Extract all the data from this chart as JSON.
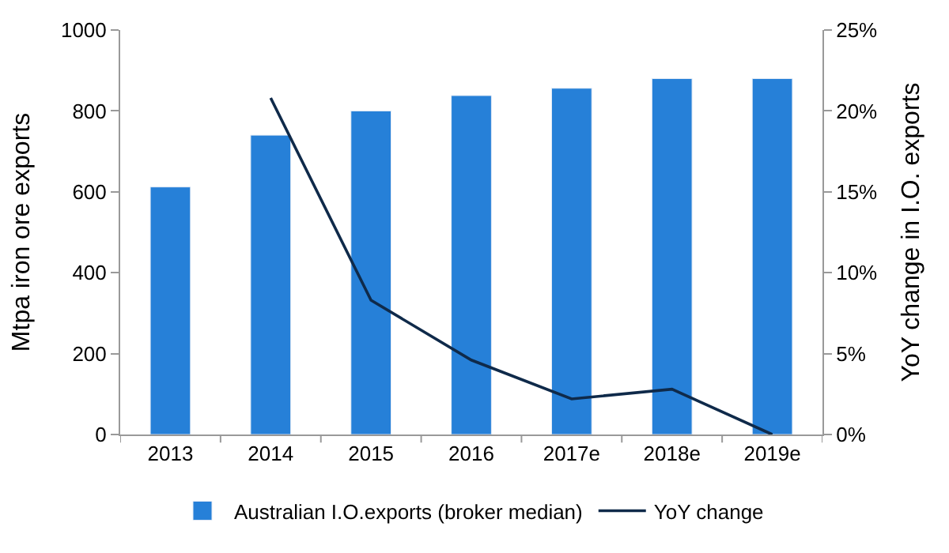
{
  "chart_data": {
    "type": "bar",
    "ylabel": "Mtpa iron ore exports",
    "y2label": "YoY change in I.O. exports",
    "categories": [
      "2013",
      "2014",
      "2015",
      "2016",
      "2017e",
      "2018e",
      "2019e"
    ],
    "series": [
      {
        "name": "Australian I.O.exports (broker median)",
        "color": "#2680d8",
        "values": [
          612,
          740,
          800,
          838,
          856,
          880,
          880
        ]
      },
      {
        "name": "YoY change",
        "type": "line",
        "axis": "y2",
        "color": "#0f2a4a",
        "values": [
          null,
          20.8,
          8.3,
          4.6,
          2.2,
          2.8,
          0
        ]
      }
    ],
    "ylim": [
      0,
      1000
    ],
    "yticks": [
      0,
      200,
      400,
      600,
      800,
      1000
    ],
    "y2lim": [
      0,
      25
    ],
    "y2ticks": [
      {
        "value": 0,
        "label": "0%"
      },
      {
        "value": 5,
        "label": "5%"
      },
      {
        "value": 10,
        "label": "10%"
      },
      {
        "value": 15,
        "label": "15%"
      },
      {
        "value": 20,
        "label": "20%"
      },
      {
        "value": 25,
        "label": "25%"
      }
    ],
    "legend": "bottom",
    "marker": "none",
    "line_style": "solid"
  }
}
